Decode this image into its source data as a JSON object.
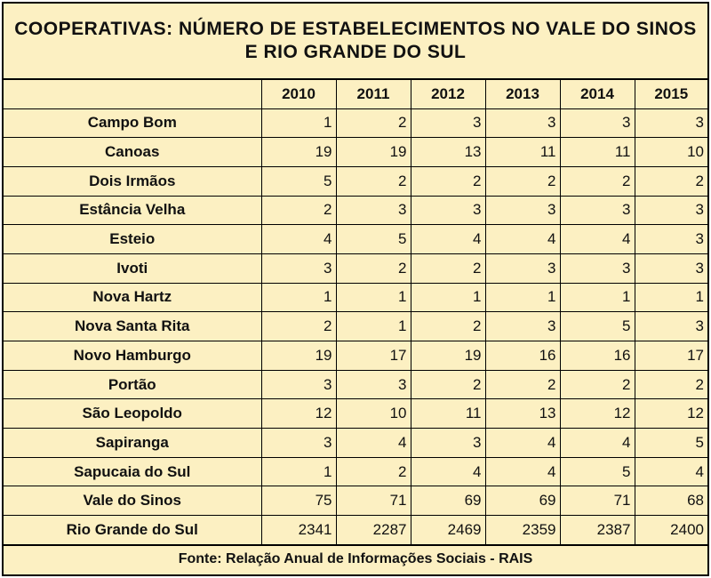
{
  "title": {
    "line1": "COOPERATIVAS:  NÚMERO  DE ESTABELECIMENTOS  NO VALE DO SINOS",
    "line2": "E RIO GRANDE  DO SUL"
  },
  "table": {
    "corner": "",
    "years": [
      "2010",
      "2011",
      "2012",
      "2013",
      "2014",
      "2015"
    ],
    "rows": [
      {
        "name": "Campo Bom",
        "values": [
          "1",
          "2",
          "3",
          "3",
          "3",
          "3"
        ]
      },
      {
        "name": "Canoas",
        "values": [
          "19",
          "19",
          "13",
          "11",
          "11",
          "10"
        ]
      },
      {
        "name": "Dois Irmãos",
        "values": [
          "5",
          "2",
          "2",
          "2",
          "2",
          "2"
        ]
      },
      {
        "name": "Estância Velha",
        "values": [
          "2",
          "3",
          "3",
          "3",
          "3",
          "3"
        ]
      },
      {
        "name": "Esteio",
        "values": [
          "4",
          "5",
          "4",
          "4",
          "4",
          "3"
        ]
      },
      {
        "name": "Ivoti",
        "values": [
          "3",
          "2",
          "2",
          "3",
          "3",
          "3"
        ]
      },
      {
        "name": "Nova Hartz",
        "values": [
          "1",
          "1",
          "1",
          "1",
          "1",
          "1"
        ]
      },
      {
        "name": "Nova Santa Rita",
        "values": [
          "2",
          "1",
          "2",
          "3",
          "5",
          "3"
        ]
      },
      {
        "name": "Novo Hamburgo",
        "values": [
          "19",
          "17",
          "19",
          "16",
          "16",
          "17"
        ]
      },
      {
        "name": "Portão",
        "values": [
          "3",
          "3",
          "2",
          "2",
          "2",
          "2"
        ]
      },
      {
        "name": "São Leopoldo",
        "values": [
          "12",
          "10",
          "11",
          "13",
          "12",
          "12"
        ]
      },
      {
        "name": "Sapiranga",
        "values": [
          "3",
          "4",
          "3",
          "4",
          "4",
          "5"
        ]
      },
      {
        "name": "Sapucaia do Sul",
        "values": [
          "1",
          "2",
          "4",
          "4",
          "5",
          "4"
        ]
      },
      {
        "name": "Vale do Sinos",
        "values": [
          "75",
          "71",
          "69",
          "69",
          "71",
          "68"
        ]
      },
      {
        "name": "Rio Grande do Sul",
        "values": [
          "2341",
          "2287",
          "2469",
          "2359",
          "2387",
          "2400"
        ]
      }
    ]
  },
  "source": "Fonte:  Relação Anual  de Informações Sociais  -  RAIS",
  "colors": {
    "background": "#fcf0c2",
    "border": "#000000",
    "text": "#111111"
  }
}
